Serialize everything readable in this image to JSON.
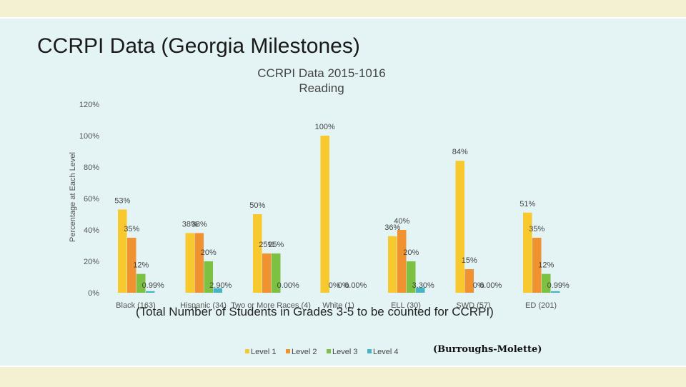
{
  "slide": {
    "title": "CCRPI Data (Georgia Milestones)",
    "note": "(Total Number of Students in Grades 3-5 to be counted for CCRPI)",
    "credit": "(Burroughs-Molette)"
  },
  "chart_data": {
    "type": "bar",
    "title": [
      "CCRPI Data 2015-1016",
      "Reading"
    ],
    "ylabel": "Percentage at Each Level",
    "xlabel": "",
    "ylim": [
      0,
      120
    ],
    "yticks": [
      "0%",
      "20%",
      "40%",
      "60%",
      "80%",
      "100%",
      "120%"
    ],
    "grid": false,
    "legend_position": "bottom",
    "categories": [
      "Black (163)",
      "Hispanic (34)",
      "Two or More Races (4)",
      "White (1)",
      "ELL (30)",
      "SWD (57)",
      "ED (201)"
    ],
    "series": [
      {
        "name": "Level 1",
        "color": "#f8c92e",
        "values": [
          53,
          38,
          50,
          100,
          36,
          84,
          51
        ],
        "labels": [
          "53%",
          "38%",
          "50%",
          "100%",
          "36%",
          "84%",
          "51%"
        ]
      },
      {
        "name": "Level 2",
        "color": "#f0922f",
        "values": [
          35,
          38,
          25,
          0,
          40,
          15,
          35
        ],
        "labels": [
          "35%",
          "38%",
          "25%",
          "0%",
          "40%",
          "15%",
          "35%"
        ]
      },
      {
        "name": "Level 3",
        "color": "#7cc142",
        "values": [
          12,
          20,
          25,
          0,
          20,
          0,
          12
        ],
        "labels": [
          "12%",
          "20%",
          "25%",
          "0%",
          "20%",
          "0%",
          "12%"
        ]
      },
      {
        "name": "Level 4",
        "color": "#45b5c6",
        "values": [
          0.99,
          2.9,
          0,
          0,
          3.3,
          0,
          0.99
        ],
        "labels": [
          "0.99%",
          "2.90%",
          "0.00%",
          "0.00%",
          "3.30%",
          "0.00%",
          "0.99%"
        ]
      }
    ]
  }
}
